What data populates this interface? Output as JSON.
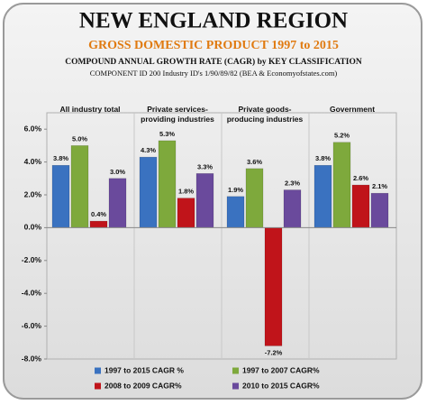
{
  "chart_data": {
    "type": "bar",
    "title": "NEW ENGLAND REGION",
    "subtitle": "GROSS DOMESTIC PRODUCT 1997 to 2015",
    "caption": "COMPOUND ANNUAL GROWTH RATE (CAGR) by KEY CLASSIFICATION",
    "source": "COMPONENT ID 200 Industry ID's 1/90/89/82  (BEA & Economyofstates.com)",
    "categories": [
      "All industry total",
      "Private services-providing industries",
      "Private goods-producing industries",
      "Government"
    ],
    "series": [
      {
        "name": "1997 to 2015 CAGR %",
        "color": "#3a72c0",
        "values": [
          3.8,
          4.3,
          1.9,
          3.8
        ],
        "value_labels": [
          "3.8%",
          "4.3%",
          "1.9%",
          "3.8%"
        ]
      },
      {
        "name": "1997 to 2007 CAGR%",
        "color": "#7ea93c",
        "values": [
          5.0,
          5.3,
          3.6,
          5.2
        ],
        "value_labels": [
          "5.0%",
          "5.3%",
          "3.6%",
          "5.2%"
        ]
      },
      {
        "name": "2008 to 2009 CAGR%",
        "color": "#c0141a",
        "values": [
          0.4,
          1.8,
          -7.2,
          2.6
        ],
        "value_labels": [
          "0.4%",
          "1.8%",
          "-7.2%",
          "2.6%"
        ]
      },
      {
        "name": "2010 to 2015 CAGR%",
        "color": "#6a4a9c",
        "values": [
          3.0,
          3.3,
          2.3,
          2.1
        ],
        "value_labels": [
          "3.0%",
          "3.3%",
          "2.3%",
          "2.1%"
        ]
      }
    ],
    "ylim": [
      -8,
      7
    ],
    "yticks": [
      {
        "value": 6,
        "label": "6.0%"
      },
      {
        "value": 4,
        "label": "4.0%"
      },
      {
        "value": 2,
        "label": "2.0%"
      },
      {
        "value": 0,
        "label": "0.0%"
      },
      {
        "value": -2,
        "label": "-2.0%"
      },
      {
        "value": -4,
        "label": "-4.0%"
      },
      {
        "value": -6,
        "label": "-6.0%"
      },
      {
        "value": -8,
        "label": "-8.0%"
      }
    ],
    "grid": true
  }
}
